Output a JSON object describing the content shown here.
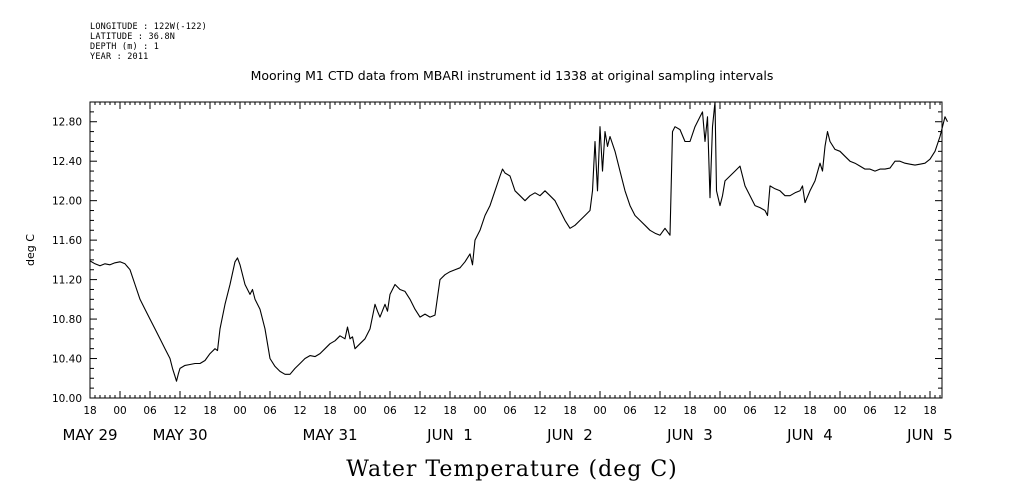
{
  "header": {
    "lines": [
      "LONGITUDE : 122W(-122)",
      "LATITUDE : 36.8N",
      "DEPTH (m) : 1",
      "YEAR : 2011"
    ]
  },
  "chart_data": {
    "type": "line",
    "title": "Mooring M1 CTD data from MBARI instrument id 1338 at original sampling intervals",
    "ylabel": "deg C",
    "xlabel": "Water Temperature (deg C)",
    "ylim": [
      10.0,
      13.0
    ],
    "yticks": [
      "10.00",
      "10.40",
      "10.80",
      "11.20",
      "11.60",
      "12.00",
      "12.40",
      "12.80"
    ],
    "ytick_values": [
      10.0,
      10.4,
      10.8,
      11.2,
      11.6,
      12.0,
      12.4,
      12.8
    ],
    "xlim_hours": [
      -6,
      174
    ],
    "hour_ticks": [
      {
        "hour": -6,
        "label": "18"
      },
      {
        "hour": 0,
        "label": "00"
      },
      {
        "hour": 6,
        "label": "06"
      },
      {
        "hour": 12,
        "label": "12"
      },
      {
        "hour": 18,
        "label": "18"
      },
      {
        "hour": 24,
        "label": "00"
      },
      {
        "hour": 30,
        "label": "06"
      },
      {
        "hour": 36,
        "label": "12"
      },
      {
        "hour": 42,
        "label": "18"
      },
      {
        "hour": 48,
        "label": "00"
      },
      {
        "hour": 54,
        "label": "06"
      },
      {
        "hour": 60,
        "label": "12"
      },
      {
        "hour": 66,
        "label": "18"
      },
      {
        "hour": 72,
        "label": "00"
      },
      {
        "hour": 78,
        "label": "06"
      },
      {
        "hour": 84,
        "label": "12"
      },
      {
        "hour": 90,
        "label": "18"
      },
      {
        "hour": 96,
        "label": "00"
      },
      {
        "hour": 102,
        "label": "06"
      },
      {
        "hour": 108,
        "label": "12"
      },
      {
        "hour": 114,
        "label": "18"
      },
      {
        "hour": 120,
        "label": "00"
      },
      {
        "hour": 126,
        "label": "06"
      },
      {
        "hour": 132,
        "label": "12"
      },
      {
        "hour": 138,
        "label": "18"
      },
      {
        "hour": 144,
        "label": "00"
      },
      {
        "hour": 150,
        "label": "06"
      },
      {
        "hour": 156,
        "label": "12"
      },
      {
        "hour": 162,
        "label": "18"
      },
      {
        "hour": 168,
        "label": "00"
      },
      {
        "hour": 174,
        "label": "06"
      },
      {
        "hour": 180,
        "label": "12"
      },
      {
        "hour": 186,
        "label": "18"
      }
    ],
    "day_labels": [
      {
        "hour": -6,
        "label": "MAY 29"
      },
      {
        "hour": 12,
        "label": "MAY 30"
      },
      {
        "hour": 42,
        "label": "MAY 31"
      },
      {
        "hour": 66,
        "label": "JUN  1"
      },
      {
        "hour": 90,
        "label": "JUN  2"
      },
      {
        "hour": 114,
        "label": "JUN  3"
      },
      {
        "hour": 138,
        "label": "JUN  4"
      },
      {
        "hour": 162,
        "label": "JUN  5"
      }
    ],
    "series": [
      {
        "points": [
          [
            -6,
            11.39
          ],
          [
            -5,
            11.36
          ],
          [
            -4,
            11.34
          ],
          [
            -3,
            11.36
          ],
          [
            -2,
            11.35
          ],
          [
            -1,
            11.37
          ],
          [
            0,
            11.38
          ],
          [
            1,
            11.36
          ],
          [
            2,
            11.3
          ],
          [
            3,
            11.15
          ],
          [
            4,
            11.0
          ],
          [
            5,
            10.9
          ],
          [
            6,
            10.8
          ],
          [
            7,
            10.7
          ],
          [
            8,
            10.6
          ],
          [
            9,
            10.5
          ],
          [
            10,
            10.4
          ],
          [
            10.5,
            10.3
          ],
          [
            11,
            10.22
          ],
          [
            11.3,
            10.17
          ],
          [
            11.7,
            10.25
          ],
          [
            12,
            10.3
          ],
          [
            13,
            10.33
          ],
          [
            14,
            10.34
          ],
          [
            15,
            10.35
          ],
          [
            16,
            10.35
          ],
          [
            17,
            10.38
          ],
          [
            18,
            10.45
          ],
          [
            19,
            10.5
          ],
          [
            19.5,
            10.48
          ],
          [
            20,
            10.7
          ],
          [
            21,
            10.95
          ],
          [
            22,
            11.15
          ],
          [
            23,
            11.38
          ],
          [
            23.5,
            11.42
          ],
          [
            24,
            11.35
          ],
          [
            25,
            11.15
          ],
          [
            26,
            11.05
          ],
          [
            26.5,
            11.1
          ],
          [
            27,
            11.0
          ],
          [
            28,
            10.9
          ],
          [
            29,
            10.7
          ],
          [
            30,
            10.4
          ],
          [
            31,
            10.32
          ],
          [
            32,
            10.27
          ],
          [
            33,
            10.24
          ],
          [
            34,
            10.24
          ],
          [
            35,
            10.3
          ],
          [
            36,
            10.35
          ],
          [
            37,
            10.4
          ],
          [
            38,
            10.43
          ],
          [
            39,
            10.42
          ],
          [
            40,
            10.45
          ],
          [
            41,
            10.5
          ],
          [
            42,
            10.55
          ],
          [
            43,
            10.58
          ],
          [
            44,
            10.63
          ],
          [
            45,
            10.6
          ],
          [
            45.5,
            10.72
          ],
          [
            46,
            10.6
          ],
          [
            46.5,
            10.62
          ],
          [
            47,
            10.5
          ],
          [
            48,
            10.55
          ],
          [
            49,
            10.6
          ],
          [
            50,
            10.7
          ],
          [
            51,
            10.95
          ],
          [
            51.5,
            10.88
          ],
          [
            52,
            10.82
          ],
          [
            53,
            10.95
          ],
          [
            53.5,
            10.88
          ],
          [
            54,
            11.05
          ],
          [
            55,
            11.15
          ],
          [
            56,
            11.1
          ],
          [
            57,
            11.08
          ],
          [
            58,
            11.0
          ],
          [
            59,
            10.9
          ],
          [
            60,
            10.82
          ],
          [
            61,
            10.85
          ],
          [
            62,
            10.82
          ],
          [
            63,
            10.84
          ],
          [
            64,
            11.2
          ],
          [
            65,
            11.25
          ],
          [
            66,
            11.28
          ],
          [
            67,
            11.3
          ],
          [
            68,
            11.32
          ],
          [
            69,
            11.38
          ],
          [
            70,
            11.46
          ],
          [
            70.5,
            11.35
          ],
          [
            71,
            11.6
          ],
          [
            72,
            11.7
          ],
          [
            73,
            11.85
          ],
          [
            74,
            11.95
          ],
          [
            75,
            12.1
          ],
          [
            76,
            12.25
          ],
          [
            76.5,
            12.32
          ],
          [
            77,
            12.28
          ],
          [
            78,
            12.25
          ],
          [
            79,
            12.1
          ],
          [
            80,
            12.05
          ],
          [
            81,
            12.0
          ],
          [
            82,
            12.05
          ],
          [
            83,
            12.08
          ],
          [
            84,
            12.05
          ],
          [
            85,
            12.1
          ],
          [
            86,
            12.05
          ],
          [
            87,
            12.0
          ],
          [
            88,
            11.9
          ],
          [
            89,
            11.8
          ],
          [
            90,
            11.72
          ],
          [
            91,
            11.75
          ],
          [
            92,
            11.8
          ],
          [
            93,
            11.85
          ],
          [
            94,
            11.9
          ],
          [
            94.5,
            12.1
          ],
          [
            95,
            12.6
          ],
          [
            95.5,
            12.1
          ],
          [
            96,
            12.75
          ],
          [
            96.5,
            12.3
          ],
          [
            97,
            12.7
          ],
          [
            97.5,
            12.55
          ],
          [
            98,
            12.65
          ],
          [
            99,
            12.5
          ],
          [
            100,
            12.3
          ],
          [
            101,
            12.1
          ],
          [
            102,
            11.95
          ],
          [
            103,
            11.85
          ],
          [
            104,
            11.8
          ],
          [
            105,
            11.75
          ],
          [
            106,
            11.7
          ],
          [
            107,
            11.67
          ],
          [
            108,
            11.65
          ],
          [
            109,
            11.72
          ],
          [
            110,
            11.65
          ],
          [
            110.5,
            12.7
          ],
          [
            111,
            12.75
          ],
          [
            112,
            12.72
          ],
          [
            113,
            12.6
          ],
          [
            114,
            12.6
          ],
          [
            115,
            12.75
          ],
          [
            116,
            12.85
          ],
          [
            116.5,
            12.9
          ],
          [
            117,
            12.6
          ],
          [
            117.5,
            12.85
          ],
          [
            118,
            12.03
          ],
          [
            118.5,
            12.75
          ],
          [
            119,
            13.0
          ],
          [
            119.3,
            12.1
          ],
          [
            120,
            11.95
          ],
          [
            120.5,
            12.05
          ],
          [
            121,
            12.2
          ],
          [
            122,
            12.25
          ],
          [
            123,
            12.3
          ],
          [
            124,
            12.35
          ],
          [
            124.5,
            12.25
          ],
          [
            125,
            12.15
          ],
          [
            126,
            12.05
          ],
          [
            127,
            11.95
          ],
          [
            128,
            11.93
          ],
          [
            129,
            11.9
          ],
          [
            129.5,
            11.85
          ],
          [
            130,
            12.15
          ],
          [
            131,
            12.12
          ],
          [
            132,
            12.1
          ],
          [
            133,
            12.05
          ],
          [
            134,
            12.05
          ],
          [
            135,
            12.08
          ],
          [
            136,
            12.1
          ],
          [
            136.5,
            12.15
          ],
          [
            137,
            11.98
          ],
          [
            138,
            12.1
          ],
          [
            139,
            12.2
          ],
          [
            140,
            12.38
          ],
          [
            140.5,
            12.3
          ],
          [
            141,
            12.55
          ],
          [
            141.5,
            12.7
          ],
          [
            142,
            12.6
          ],
          [
            143,
            12.52
          ],
          [
            144,
            12.5
          ],
          [
            145,
            12.45
          ],
          [
            146,
            12.4
          ],
          [
            147,
            12.38
          ],
          [
            148,
            12.35
          ],
          [
            149,
            12.32
          ],
          [
            150,
            12.32
          ],
          [
            151,
            12.3
          ],
          [
            152,
            12.32
          ],
          [
            153,
            12.32
          ],
          [
            154,
            12.33
          ],
          [
            155,
            12.4
          ],
          [
            156,
            12.4
          ],
          [
            157,
            12.38
          ],
          [
            158,
            12.37
          ],
          [
            159,
            12.36
          ],
          [
            160,
            12.37
          ],
          [
            161,
            12.38
          ],
          [
            162,
            12.42
          ],
          [
            163,
            12.5
          ],
          [
            164,
            12.65
          ],
          [
            164.5,
            12.75
          ],
          [
            165,
            12.85
          ],
          [
            165.5,
            12.8
          ]
        ]
      }
    ]
  }
}
